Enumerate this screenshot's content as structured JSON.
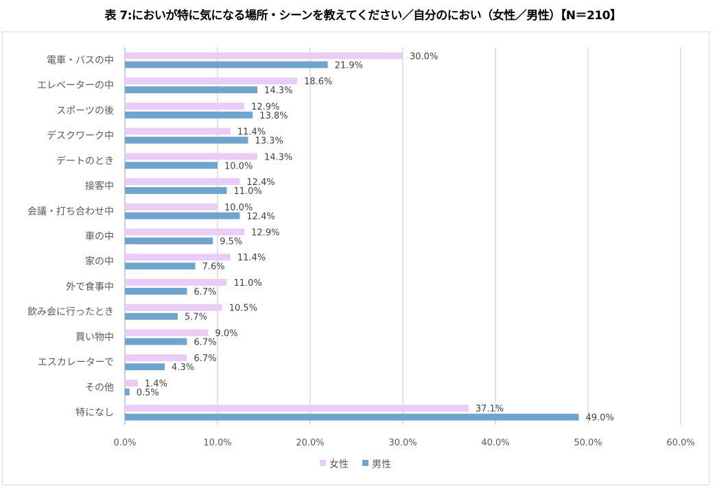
{
  "chart_data": {
    "type": "bar",
    "orientation": "horizontal",
    "title": "表 7:においが特に気になる場所・シーンを教えてください／自分のにおい（女性／男性）【N＝210】",
    "categories": [
      "電車・バスの中",
      "エレベーターの中",
      "スポーツの後",
      "デスクワーク中",
      "デートのとき",
      "接客中",
      "会議・打ち合わせ中",
      "車の中",
      "家の中",
      "外で食事中",
      "飲み会に行ったとき",
      "買い物中",
      "エスカレーターで",
      "その他",
      "特になし"
    ],
    "series": [
      {
        "name": "女性",
        "color": "#EACDF7",
        "values": [
          30.0,
          18.6,
          12.9,
          11.4,
          14.3,
          12.4,
          10.0,
          12.9,
          11.4,
          11.0,
          10.5,
          9.0,
          6.7,
          1.4,
          37.1
        ]
      },
      {
        "name": "男性",
        "color": "#70A4CC",
        "values": [
          21.9,
          14.3,
          13.8,
          13.3,
          10.0,
          11.0,
          12.4,
          9.5,
          7.6,
          6.7,
          5.7,
          6.7,
          4.3,
          0.5,
          49.0
        ]
      }
    ],
    "xlim": [
      0,
      60
    ],
    "xticks": [
      "0.0%",
      "10.0%",
      "20.0%",
      "30.0%",
      "40.0%",
      "50.0%",
      "60.0%"
    ],
    "grid": true,
    "legend": "bottom",
    "xlabel": "",
    "ylabel": ""
  }
}
